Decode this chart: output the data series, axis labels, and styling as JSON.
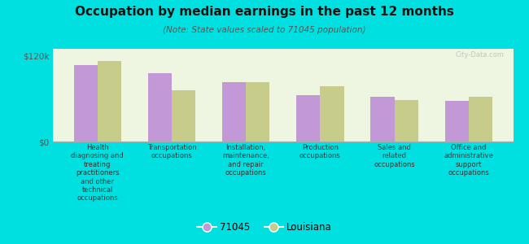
{
  "title": "Occupation by median earnings in the past 12 months",
  "subtitle": "(Note: State values scaled to 71045 population)",
  "categories": [
    "Health\ndiagnosing and\ntreating\npractitioners\nand other\ntechnical\noccupations",
    "Transportation\noccupations",
    "Installation,\nmaintenance,\nand repair\noccupations",
    "Production\noccupations",
    "Sales and\nrelated\noccupations",
    "Office and\nadministrative\nsupport\noccupations"
  ],
  "values_71045": [
    107000,
    96000,
    83000,
    65000,
    63000,
    57000
  ],
  "values_louisiana": [
    113000,
    72000,
    83000,
    78000,
    58000,
    63000
  ],
  "ylim": [
    0,
    130000
  ],
  "yticks": [
    0,
    120000
  ],
  "ytick_labels": [
    "$0",
    "$120k"
  ],
  "bar_color_71045": "#c299d6",
  "bar_color_louisiana": "#c8cc8a",
  "background_color": "#00e0e0",
  "plot_bg": "#eef5e0",
  "legend_label_71045": "71045",
  "legend_label_louisiana": "Louisiana",
  "bar_width": 0.32,
  "watermark": "City-Data.com"
}
